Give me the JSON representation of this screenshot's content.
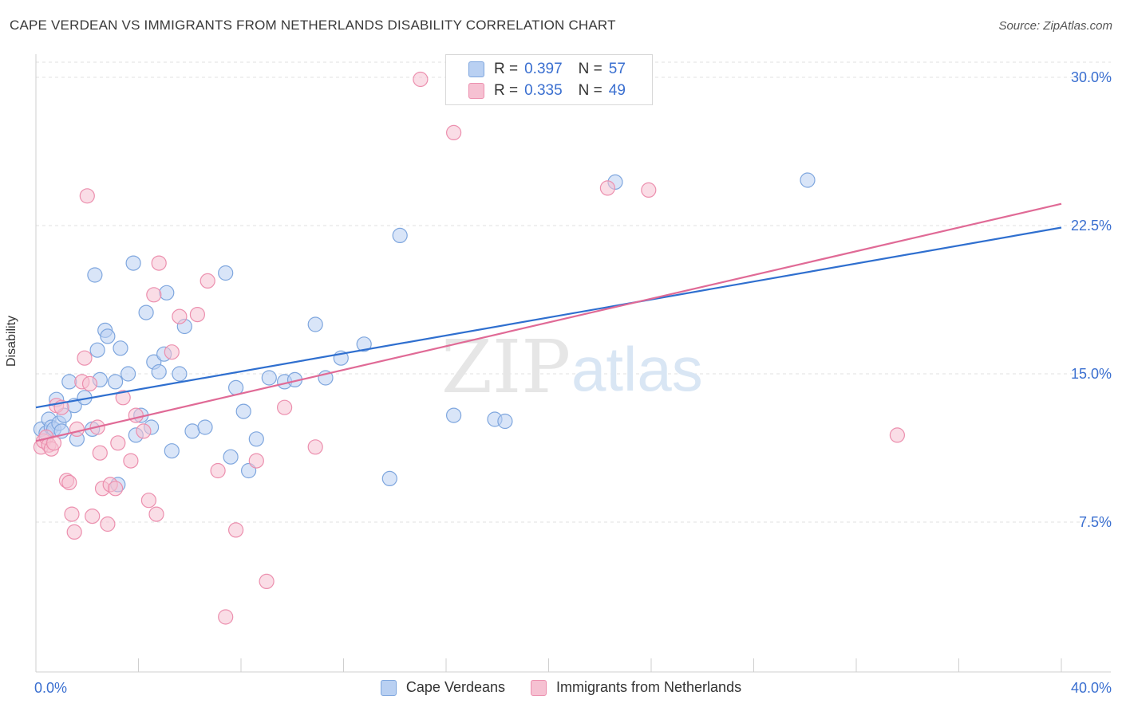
{
  "title": "CAPE VERDEAN VS IMMIGRANTS FROM NETHERLANDS DISABILITY CORRELATION CHART",
  "source": "Source: ZipAtlas.com",
  "watermark": {
    "zip": "ZIP",
    "atlas": "atlas"
  },
  "legend_top": {
    "rows": [
      {
        "r_label": "R =",
        "r_value": "0.397",
        "n_label": "N =",
        "n_value": "57"
      },
      {
        "r_label": "R =",
        "r_value": "0.335",
        "n_label": "N =",
        "n_value": "49"
      }
    ]
  },
  "colors": {
    "blue_fill": "#b9d0f2",
    "blue_stroke": "#7ea6de",
    "blue_line": "#2f6fcf",
    "pink_fill": "#f6c1d2",
    "pink_stroke": "#ec8fae",
    "pink_line": "#e06a96",
    "tick_label": "#3a6fd0",
    "grid": "#e2e2e2"
  },
  "chart_data": {
    "type": "scatter",
    "title": "CAPE VERDEAN VS IMMIGRANTS FROM NETHERLANDS DISABILITY CORRELATION CHART",
    "ylabel": "Disability",
    "xlabel": "",
    "xlim": [
      0,
      40
    ],
    "ylim": [
      0,
      31.5
    ],
    "x_tick_labels": [
      {
        "value": 0,
        "label": "0.0%"
      },
      {
        "value": 40,
        "label": "40.0%"
      }
    ],
    "y_tick_labels": [
      {
        "value": 7.5,
        "label": "7.5%"
      },
      {
        "value": 15,
        "label": "15.0%"
      },
      {
        "value": 22.5,
        "label": "22.5%"
      },
      {
        "value": 30,
        "label": "30.0%"
      }
    ],
    "series": [
      {
        "name": "Cape Verdeans",
        "color_key": "blue",
        "r": 0.397,
        "n": 57,
        "trend": {
          "x0": 0,
          "y0": 13.3,
          "x1": 40,
          "y1": 22.4
        },
        "points": [
          [
            0.2,
            12.2
          ],
          [
            0.4,
            12.0
          ],
          [
            0.5,
            12.7
          ],
          [
            0.6,
            12.3
          ],
          [
            0.7,
            12.2
          ],
          [
            0.8,
            13.7
          ],
          [
            0.9,
            12.5
          ],
          [
            1.0,
            12.1
          ],
          [
            1.1,
            12.9
          ],
          [
            1.3,
            14.6
          ],
          [
            1.5,
            13.4
          ],
          [
            1.6,
            11.7
          ],
          [
            1.9,
            13.8
          ],
          [
            2.2,
            12.2
          ],
          [
            2.3,
            20.0
          ],
          [
            2.4,
            16.2
          ],
          [
            2.5,
            14.7
          ],
          [
            2.7,
            17.2
          ],
          [
            2.8,
            16.9
          ],
          [
            3.1,
            14.6
          ],
          [
            3.2,
            9.4
          ],
          [
            3.3,
            16.3
          ],
          [
            3.6,
            15.0
          ],
          [
            3.8,
            20.6
          ],
          [
            3.9,
            11.9
          ],
          [
            4.1,
            12.9
          ],
          [
            4.3,
            18.1
          ],
          [
            4.5,
            12.3
          ],
          [
            4.6,
            15.6
          ],
          [
            4.8,
            15.1
          ],
          [
            5.0,
            16.0
          ],
          [
            5.1,
            19.1
          ],
          [
            5.3,
            11.1
          ],
          [
            5.6,
            15.0
          ],
          [
            5.8,
            17.4
          ],
          [
            6.1,
            12.1
          ],
          [
            6.6,
            12.3
          ],
          [
            7.4,
            20.1
          ],
          [
            7.6,
            10.8
          ],
          [
            7.8,
            14.3
          ],
          [
            8.1,
            13.1
          ],
          [
            8.3,
            10.1
          ],
          [
            8.6,
            11.7
          ],
          [
            9.1,
            14.8
          ],
          [
            9.7,
            14.6
          ],
          [
            10.1,
            14.7
          ],
          [
            10.9,
            17.5
          ],
          [
            11.3,
            14.8
          ],
          [
            11.9,
            15.8
          ],
          [
            12.8,
            16.5
          ],
          [
            13.8,
            9.7
          ],
          [
            14.2,
            22.0
          ],
          [
            16.3,
            12.9
          ],
          [
            17.9,
            12.7
          ],
          [
            18.3,
            12.6
          ],
          [
            22.6,
            24.7
          ],
          [
            30.1,
            24.8
          ]
        ]
      },
      {
        "name": "Immigrants from Netherlands",
        "color_key": "pink",
        "r": 0.335,
        "n": 49,
        "trend": {
          "x0": 0,
          "y0": 11.6,
          "x1": 40,
          "y1": 23.6
        },
        "points": [
          [
            0.2,
            11.3
          ],
          [
            0.3,
            11.6
          ],
          [
            0.4,
            11.8
          ],
          [
            0.5,
            11.4
          ],
          [
            0.6,
            11.2
          ],
          [
            0.7,
            11.5
          ],
          [
            0.8,
            13.4
          ],
          [
            1.0,
            13.3
          ],
          [
            1.2,
            9.6
          ],
          [
            1.3,
            9.5
          ],
          [
            1.4,
            7.9
          ],
          [
            1.5,
            7.0
          ],
          [
            1.6,
            12.2
          ],
          [
            1.8,
            14.6
          ],
          [
            1.9,
            15.8
          ],
          [
            2.0,
            24.0
          ],
          [
            2.1,
            14.5
          ],
          [
            2.2,
            7.8
          ],
          [
            2.4,
            12.3
          ],
          [
            2.5,
            11.0
          ],
          [
            2.6,
            9.2
          ],
          [
            2.8,
            7.4
          ],
          [
            2.9,
            9.4
          ],
          [
            3.1,
            9.2
          ],
          [
            3.2,
            11.5
          ],
          [
            3.4,
            13.8
          ],
          [
            3.7,
            10.6
          ],
          [
            3.9,
            12.9
          ],
          [
            4.2,
            12.1
          ],
          [
            4.4,
            8.6
          ],
          [
            4.6,
            19.0
          ],
          [
            4.7,
            7.9
          ],
          [
            4.8,
            20.6
          ],
          [
            5.3,
            16.1
          ],
          [
            5.6,
            17.9
          ],
          [
            6.3,
            18.0
          ],
          [
            6.7,
            19.7
          ],
          [
            7.1,
            10.1
          ],
          [
            7.4,
            2.7
          ],
          [
            7.8,
            7.1
          ],
          [
            8.6,
            10.6
          ],
          [
            9.0,
            4.5
          ],
          [
            9.7,
            13.3
          ],
          [
            10.9,
            11.3
          ],
          [
            15.0,
            29.9
          ],
          [
            16.3,
            27.2
          ],
          [
            22.3,
            24.4
          ],
          [
            23.9,
            24.3
          ],
          [
            33.6,
            11.9
          ]
        ]
      }
    ]
  },
  "legend_bottom": [
    {
      "label": "Cape Verdeans",
      "color_key": "blue"
    },
    {
      "label": "Immigrants from Netherlands",
      "color_key": "pink"
    }
  ]
}
